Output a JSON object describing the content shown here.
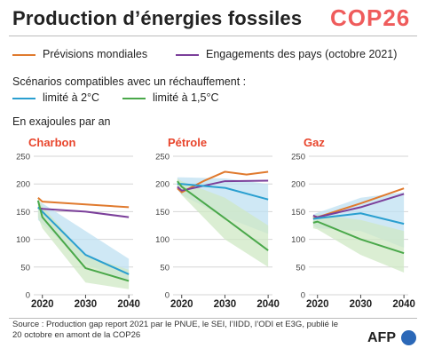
{
  "header": {
    "title": "Production d’énergies fossiles",
    "logo": "COP26"
  },
  "legend": {
    "previsions": "Prévisions mondiales",
    "engagements": "Engagements des pays (octobre 2021)",
    "scenario_title": "Scénarios compatibles avec un réchauffement :",
    "limite2": "limité à 2°C",
    "limite15": "limité à 1,5°C"
  },
  "unit": "En exajoules par an",
  "colors": {
    "previsions": "#e07a2e",
    "engagements": "#7b3f9a",
    "limite2": "#2a9fd0",
    "limite15": "#4aa84a",
    "band2": "#bfe0f1",
    "band15": "#cfe8c4",
    "panel_title": "#e8452c"
  },
  "chart_data": {
    "type": "line",
    "ylim": [
      0,
      250
    ],
    "yticks": [
      0,
      50,
      100,
      150,
      200,
      250
    ],
    "xticks": [
      2020,
      2030,
      2040
    ],
    "panels": [
      {
        "title": "Charbon",
        "series": [
          {
            "name": "Prévisions mondiales",
            "x": [
              2019,
              2020,
              2030,
              2040
            ],
            "y": [
              175,
              168,
              163,
              158
            ]
          },
          {
            "name": "Engagements des pays (octobre 2021)",
            "x": [
              2019,
              2020,
              2030,
              2040
            ],
            "y": [
              157,
              155,
              150,
              140
            ]
          },
          {
            "name": "limité à 2°C",
            "x": [
              2019,
              2020,
              2030,
              2040
            ],
            "y": [
              158,
              150,
              72,
              37
            ]
          },
          {
            "name": "limité à 1,5°C",
            "x": [
              2019,
              2020,
              2030,
              2040
            ],
            "y": [
              170,
              140,
              48,
              25
            ]
          }
        ],
        "bands": [
          {
            "name": "limité à 2°C",
            "x": [
              2019,
              2020,
              2030,
              2040
            ],
            "low": [
              135,
              128,
              55,
              25
            ],
            "high": [
              170,
              165,
              115,
              65
            ]
          },
          {
            "name": "limité à 1,5°C",
            "x": [
              2019,
              2020,
              2030,
              2040
            ],
            "low": [
              140,
              120,
              22,
              10
            ],
            "high": [
              175,
              160,
              70,
              45
            ]
          }
        ]
      },
      {
        "title": "Pétrole",
        "series": [
          {
            "name": "Prévisions mondiales",
            "x": [
              2019,
              2020,
              2025,
              2030,
              2035,
              2040
            ],
            "y": [
              192,
              185,
              205,
              222,
              217,
              222
            ]
          },
          {
            "name": "Engagements des pays (octobre 2021)",
            "x": [
              2019,
              2020,
              2030,
              2040
            ],
            "y": [
              195,
              188,
              205,
              206
            ]
          },
          {
            "name": "limité à 2°C",
            "x": [
              2019,
              2020,
              2030,
              2040
            ],
            "y": [
              200,
              200,
              193,
              172
            ]
          },
          {
            "name": "limité à 1,5°C",
            "x": [
              2019,
              2020,
              2030,
              2040
            ],
            "y": [
              205,
              195,
              138,
              80
            ]
          }
        ],
        "bands": [
          {
            "name": "limité à 2°C",
            "x": [
              2019,
              2020,
              2030,
              2040
            ],
            "low": [
              190,
              180,
              140,
              110
            ],
            "high": [
              212,
              212,
              210,
              200
            ]
          },
          {
            "name": "limité à 1,5°C",
            "x": [
              2019,
              2020,
              2030,
              2040
            ],
            "low": [
              195,
              180,
              100,
              50
            ],
            "high": [
              210,
              205,
              175,
              125
            ]
          }
        ]
      },
      {
        "title": "Gaz",
        "series": [
          {
            "name": "Prévisions mondiales",
            "x": [
              2019,
              2020,
              2030,
              2040
            ],
            "y": [
              138,
              140,
              165,
              192
            ]
          },
          {
            "name": "Engagements des pays (octobre 2021)",
            "x": [
              2019,
              2020,
              2030,
              2040
            ],
            "y": [
              143,
              140,
              158,
              182
            ]
          },
          {
            "name": "limité à 2°C",
            "x": [
              2019,
              2020,
              2030,
              2040
            ],
            "y": [
              137,
              138,
              147,
              128
            ]
          },
          {
            "name": "limité à 1,5°C",
            "x": [
              2019,
              2020,
              2030,
              2040
            ],
            "y": [
              130,
              132,
              100,
              75
            ]
          }
        ],
        "bands": [
          {
            "name": "limité à 2°C",
            "x": [
              2019,
              2020,
              2030,
              2040
            ],
            "low": [
              125,
              120,
              115,
              85
            ],
            "high": [
              145,
              148,
              175,
              185
            ]
          },
          {
            "name": "limité à 1,5°C",
            "x": [
              2019,
              2020,
              2030,
              2040
            ],
            "low": [
              120,
              118,
              72,
              40
            ],
            "high": [
              142,
              145,
              135,
              115
            ]
          }
        ]
      }
    ]
  },
  "footer": {
    "source": "Source : Production gap report 2021 par le PNUE, le SEI, l’IIDD, l’ODI et E3G, publié le 20 octobre en amont de la COP26",
    "brand": "AFP"
  }
}
